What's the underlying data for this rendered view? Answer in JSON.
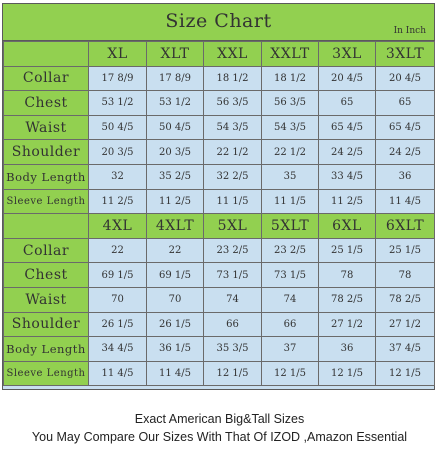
{
  "title": "Size Chart",
  "unit": "In Inch",
  "colors": {
    "header_green": "#92d050",
    "cell_blue": "#c9dff0",
    "grid_line": "#6a6a6a",
    "text": "#333333"
  },
  "row_labels": [
    "Collar",
    "Chest",
    "Waist",
    "Shoulder",
    "Body Length",
    "Sleeve Length"
  ],
  "block1": {
    "sizes": [
      "XL",
      "XLT",
      "XXL",
      "XXLT",
      "3XL",
      "3XLT"
    ],
    "rows": [
      [
        "17 8/9",
        "17 8/9",
        "18 1/2",
        "18 1/2",
        "20 4/5",
        "20 4/5"
      ],
      [
        "53 1/2",
        "53 1/2",
        "56 3/5",
        "56 3/5",
        "65",
        "65"
      ],
      [
        "50 4/5",
        "50 4/5",
        "54 3/5",
        "54 3/5",
        "65 4/5",
        "65 4/5"
      ],
      [
        "20 3/5",
        "20 3/5",
        "22 1/2",
        "22 1/2",
        "24 2/5",
        "24 2/5"
      ],
      [
        "32",
        "35 2/5",
        "32 2/5",
        "35",
        "33 4/5",
        "36"
      ],
      [
        "11 2/5",
        "11 2/5",
        "11 1/5",
        "11 1/5",
        "11 2/5",
        "11 4/5"
      ]
    ]
  },
  "block2": {
    "sizes": [
      "4XL",
      "4XLT",
      "5XL",
      "5XLT",
      "6XL",
      "6XLT"
    ],
    "rows": [
      [
        "22",
        "22",
        "23 2/5",
        "23 2/5",
        "25 1/5",
        "25 1/5"
      ],
      [
        "69 1/5",
        "69 1/5",
        "73 1/5",
        "73 1/5",
        "78",
        "78"
      ],
      [
        "70",
        "70",
        "74",
        "74",
        "78 2/5",
        "78 2/5"
      ],
      [
        "26 1/5",
        "26 1/5",
        "66",
        "66",
        "27 1/2",
        "27 1/2"
      ],
      [
        "34 4/5",
        "36 1/5",
        "35 3/5",
        "37",
        "36",
        "37 4/5"
      ],
      [
        "11 4/5",
        "11 4/5",
        "12 1/5",
        "12 1/5",
        "12 1/5",
        "12 1/5"
      ]
    ]
  },
  "captions": [
    "Exact American Big&Tall Sizes",
    "You May Compare Our Sizes With That Of IZOD ,Amazon Essential"
  ]
}
